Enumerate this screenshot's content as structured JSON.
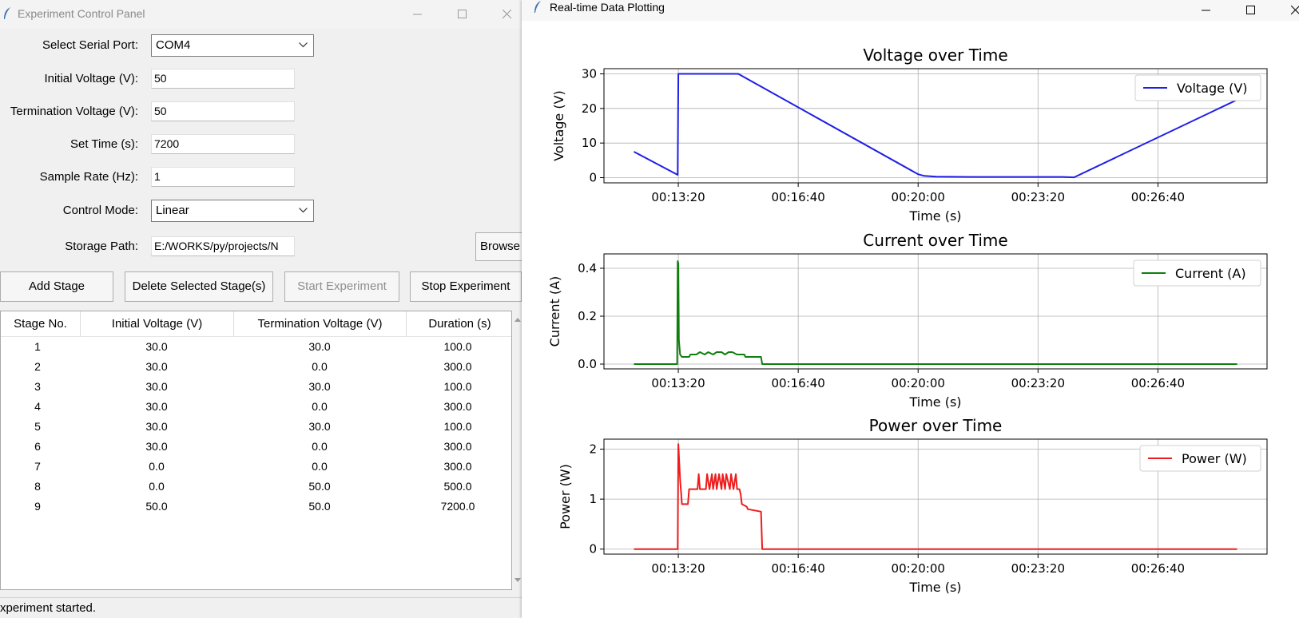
{
  "control_panel": {
    "title": "Experiment Control Panel",
    "fields": {
      "serial_port_label": "Select Serial Port:",
      "serial_port_value": "COM4",
      "initial_voltage_label": "Initial Voltage (V):",
      "initial_voltage_value": "50",
      "termination_voltage_label": "Termination Voltage (V):",
      "termination_voltage_value": "50",
      "set_time_label": "Set Time (s):",
      "set_time_value": "7200",
      "sample_rate_label": "Sample Rate (Hz):",
      "sample_rate_value": "1",
      "control_mode_label": "Control Mode:",
      "control_mode_value": "Linear",
      "storage_path_label": "Storage Path:",
      "storage_path_value": "E:/WORKS/py/projects/N",
      "browse_label": "Browse"
    },
    "buttons": {
      "add_stage": "Add Stage",
      "delete_stage": "Delete Selected Stage(s)",
      "start": "Start Experiment",
      "stop": "Stop Experiment"
    },
    "table": {
      "headers": [
        "Stage No.",
        "Initial Voltage (V)",
        "Termination Voltage (V)",
        "Duration (s)"
      ],
      "rows": [
        [
          "1",
          "30.0",
          "30.0",
          "100.0"
        ],
        [
          "2",
          "30.0",
          "0.0",
          "300.0"
        ],
        [
          "3",
          "30.0",
          "30.0",
          "100.0"
        ],
        [
          "4",
          "30.0",
          "0.0",
          "300.0"
        ],
        [
          "5",
          "30.0",
          "30.0",
          "100.0"
        ],
        [
          "6",
          "30.0",
          "0.0",
          "300.0"
        ],
        [
          "7",
          "0.0",
          "0.0",
          "300.0"
        ],
        [
          "8",
          "0.0",
          "50.0",
          "500.0"
        ],
        [
          "9",
          "50.0",
          "50.0",
          "7200.0"
        ]
      ]
    },
    "status": "xperiment started."
  },
  "plot_window": {
    "title": "Real-time Data Plotting"
  },
  "chart_data": [
    {
      "type": "line",
      "title": "Voltage over Time",
      "xlabel": "Time (s)",
      "ylabel": "Voltage (V)",
      "x_ticks": [
        "00:13:20",
        "00:16:40",
        "00:20:00",
        "00:23:20",
        "00:26:40"
      ],
      "x_tick_values": [
        800,
        1000,
        1200,
        1400,
        1600
      ],
      "xlim": [
        676,
        1782
      ],
      "ylim": [
        -1.5,
        31.5
      ],
      "y_ticks": [
        0,
        10,
        20,
        30
      ],
      "y_tick_labels": [
        "0",
        "10",
        "20",
        "30"
      ],
      "grid": true,
      "legend_position": "top-right",
      "color": "#1f1fe6",
      "series": [
        {
          "name": "Voltage (V)",
          "x": [
            726,
            799,
            800,
            900,
            1200,
            1210,
            1230,
            1290,
            1300,
            1400,
            1440,
            1460,
            1732
          ],
          "y": [
            7.5,
            0.8,
            30,
            30,
            1.0,
            0.5,
            0.3,
            0.2,
            0.2,
            0.2,
            0.2,
            0.1,
            22.5
          ]
        }
      ]
    },
    {
      "type": "line",
      "title": "Current over Time",
      "xlabel": "Time (s)",
      "ylabel": "Current (A)",
      "x_ticks": [
        "00:13:20",
        "00:16:40",
        "00:20:00",
        "00:23:20",
        "00:26:40"
      ],
      "x_tick_values": [
        800,
        1000,
        1200,
        1400,
        1600
      ],
      "xlim": [
        676,
        1782
      ],
      "ylim": [
        -0.02,
        0.46
      ],
      "y_ticks": [
        0.0,
        0.2,
        0.4
      ],
      "y_tick_labels": [
        "0.0",
        "0.2",
        "0.4"
      ],
      "grid": true,
      "legend_position": "top-right",
      "color": "#0f7f0f",
      "series": [
        {
          "name": "Current (A)",
          "x": [
            726,
            798,
            799,
            800,
            801,
            803,
            806,
            810,
            818,
            820,
            830,
            836,
            844,
            850,
            858,
            864,
            872,
            878,
            884,
            890,
            898,
            904,
            910,
            912,
            938,
            940,
            950,
            1200,
            1500,
            1732
          ],
          "y": [
            0.0,
            0.0,
            0.43,
            0.42,
            0.1,
            0.04,
            0.03,
            0.03,
            0.03,
            0.04,
            0.04,
            0.05,
            0.04,
            0.05,
            0.04,
            0.05,
            0.05,
            0.04,
            0.05,
            0.05,
            0.04,
            0.04,
            0.04,
            0.03,
            0.03,
            0.0,
            0.0,
            0.0,
            0.0,
            0.0
          ]
        }
      ]
    },
    {
      "type": "line",
      "title": "Power over Time",
      "xlabel": "Time (s)",
      "ylabel": "Power (W)",
      "x_ticks": [
        "00:13:20",
        "00:16:40",
        "00:20:00",
        "00:23:20",
        "00:26:40"
      ],
      "x_tick_values": [
        800,
        1000,
        1200,
        1400,
        1600
      ],
      "xlim": [
        676,
        1782
      ],
      "ylim": [
        -0.1,
        2.2
      ],
      "y_ticks": [
        0,
        1,
        2
      ],
      "y_tick_labels": [
        "0",
        "1",
        "2"
      ],
      "grid": true,
      "legend_position": "top-right",
      "color": "#ee1c1c",
      "series": [
        {
          "name": "Power (W)",
          "x": [
            726,
            799,
            800,
            803,
            806,
            816,
            818,
            832,
            834,
            836,
            840,
            846,
            848,
            852,
            856,
            858,
            862,
            864,
            868,
            872,
            874,
            878,
            880,
            886,
            888,
            892,
            896,
            898,
            902,
            904,
            906,
            914,
            916,
            938,
            940,
            1200,
            1500,
            1732
          ],
          "y": [
            0.0,
            0.0,
            2.1,
            1.4,
            0.9,
            0.9,
            1.2,
            1.2,
            1.5,
            1.2,
            1.2,
            1.2,
            1.5,
            1.2,
            1.5,
            1.2,
            1.5,
            1.2,
            1.5,
            1.2,
            1.5,
            1.2,
            1.5,
            1.2,
            1.5,
            1.2,
            1.5,
            1.2,
            1.2,
            1.1,
            0.9,
            0.85,
            0.8,
            0.75,
            0.0,
            0.0,
            0.0,
            0.0
          ]
        }
      ]
    }
  ]
}
